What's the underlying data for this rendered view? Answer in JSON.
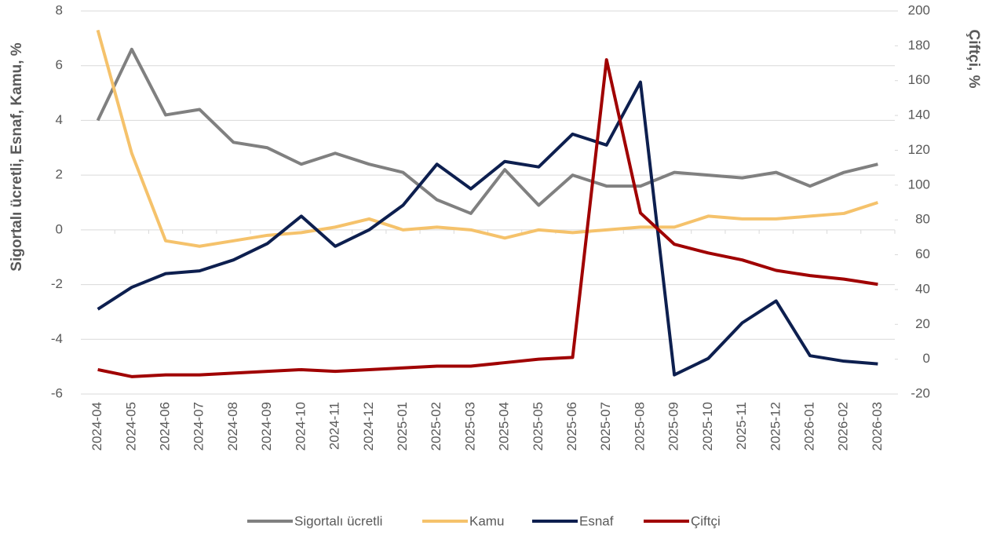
{
  "chart_data": {
    "type": "line",
    "ylabel": "Sigortalı ücretli, Esnaf, Kamu, %",
    "y2label": "Çiftçi, %",
    "categories": [
      "2024-04",
      "2024-05",
      "2024-06",
      "2024-07",
      "2024-08",
      "2024-09",
      "2024-10",
      "2024-11",
      "2024-12",
      "2025-01",
      "2025-02",
      "2025-03",
      "2025-04",
      "2025-05",
      "2025-06",
      "2025-07",
      "2025-08",
      "2025-09",
      "2025-10",
      "2025-11",
      "2025-12",
      "2026-01",
      "2026-02",
      "2026-03"
    ],
    "ylim": [
      -6,
      8
    ],
    "yticks": [
      -6,
      -4,
      -2,
      0,
      2,
      4,
      6,
      8
    ],
    "y2lim": [
      -20,
      200
    ],
    "y2ticks": [
      -20,
      0,
      20,
      40,
      60,
      80,
      100,
      120,
      140,
      160,
      180,
      200
    ],
    "grid": true,
    "legend": "bottom",
    "series": [
      {
        "name": "Sigortalı ücretli",
        "color": "#808080",
        "values": [
          4.0,
          6.6,
          4.2,
          4.4,
          3.2,
          3.0,
          2.4,
          2.8,
          2.4,
          2.1,
          1.1,
          0.6,
          2.2,
          0.9,
          2.0,
          1.6,
          1.6,
          2.1,
          2.0,
          1.9,
          2.1,
          1.6,
          2.1,
          2.4
        ]
      },
      {
        "name": "Kamu",
        "color": "#f5c26b",
        "values": [
          7.3,
          2.8,
          -0.4,
          -0.6,
          -0.4,
          -0.2,
          -0.1,
          0.1,
          0.4,
          0.0,
          0.1,
          0.0,
          -0.3,
          0.0,
          -0.1,
          0.0,
          0.1,
          0.1,
          0.5,
          0.4,
          0.4,
          0.5,
          0.6,
          1.0
        ]
      },
      {
        "name": "Esnaf",
        "color": "#0d1f4f",
        "values": [
          -2.9,
          -2.1,
          -1.6,
          -1.5,
          -1.1,
          -0.5,
          0.5,
          -0.6,
          0.0,
          0.9,
          2.4,
          1.5,
          2.5,
          2.3,
          3.5,
          3.1,
          5.4,
          -5.3,
          -4.7,
          -3.4,
          -2.6,
          -4.6,
          -4.8,
          -4.9
        ]
      },
      {
        "name": "Çiftçi",
        "color": "#a00000",
        "axis": "y2",
        "values": [
          -6,
          -10,
          -9,
          -9,
          -8,
          -7,
          -6,
          -7,
          -6,
          -5,
          -4,
          -4,
          -2,
          0,
          1,
          172,
          84,
          66,
          61,
          57,
          51,
          48,
          46,
          43
        ]
      }
    ]
  }
}
